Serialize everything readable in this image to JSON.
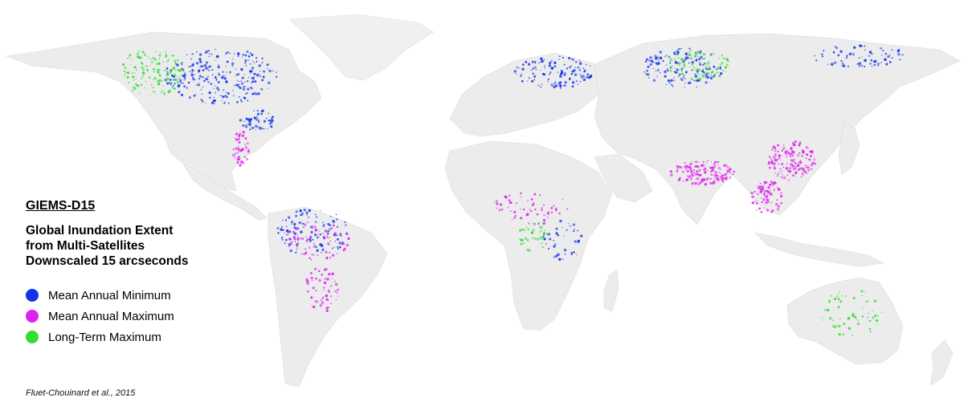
{
  "legend": {
    "heading": "GIEMS-D15",
    "subtitle_lines": [
      "Global Inundation Extent",
      "from Multi-Satellites",
      "Downscaled 15 arcseconds"
    ],
    "items": [
      {
        "label": "Mean Annual Minimum",
        "color": "#1133ee"
      },
      {
        "label": "Mean Annual Maximum",
        "color": "#dd22ee"
      },
      {
        "label": "Long-Term Maximum",
        "color": "#33dd33"
      }
    ]
  },
  "credit": "Fluet-Chouinard et al., 2015",
  "colors": {
    "land": "#ececec",
    "ice": "#f0f0f0",
    "minimum": "#1133ee",
    "maximum": "#dd22ee",
    "long_term": "#33dd33"
  }
}
